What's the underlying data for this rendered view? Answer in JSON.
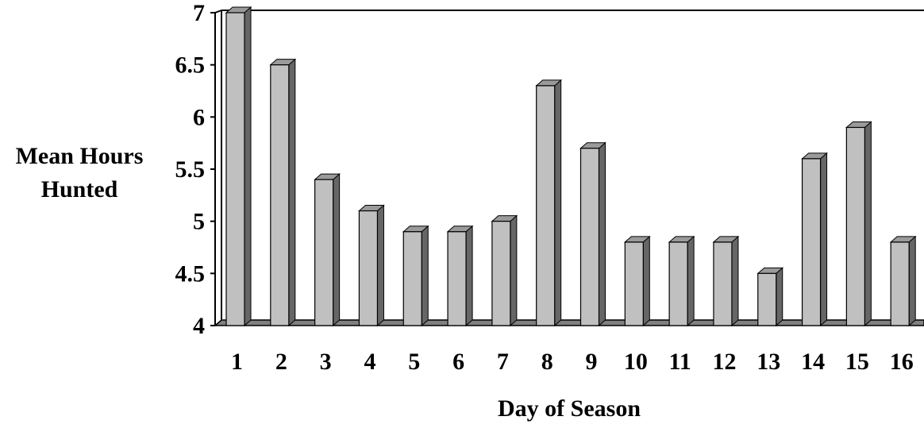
{
  "chart_data": {
    "type": "bar",
    "title": "",
    "xlabel": "Day of Season",
    "ylabel_lines": [
      "Mean Hours",
      "Hunted"
    ],
    "categories": [
      "1",
      "2",
      "3",
      "4",
      "5",
      "6",
      "7",
      "8",
      "9",
      "10",
      "11",
      "12",
      "13",
      "14",
      "15",
      "16"
    ],
    "values": [
      7.0,
      6.5,
      5.4,
      5.1,
      4.9,
      4.9,
      5.0,
      6.3,
      5.7,
      4.8,
      4.8,
      4.8,
      4.5,
      5.6,
      5.9,
      4.8
    ],
    "ylim": [
      4,
      7
    ],
    "yticks": [
      "4",
      "4.5",
      "5",
      "5.5",
      "6",
      "6.5",
      "7"
    ],
    "grid": false,
    "style": "3d",
    "colors": {
      "bar_face": "#c0c0c0",
      "bar_side": "#666666",
      "bar_top": "#9a9a9a",
      "axis": "#000000",
      "floor": "#808080"
    }
  }
}
